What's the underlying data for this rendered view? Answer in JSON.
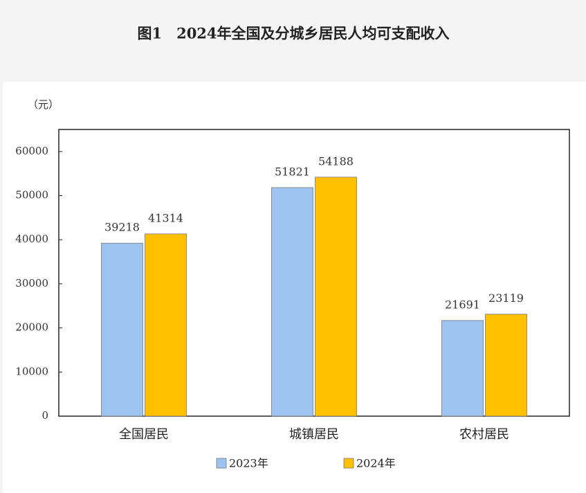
{
  "chart_data": {
    "type": "bar",
    "title": "图1　2024年全国及分城乡居民人均可支配收入",
    "y_label": "（元）",
    "categories": [
      "全国居民",
      "城镇居民",
      "农村居民"
    ],
    "series": [
      {
        "name": "2023年",
        "color": "#9dc3f0",
        "values": [
          39218,
          51821,
          21691
        ]
      },
      {
        "name": "2024年",
        "color": "#ffc000",
        "values": [
          41314,
          54188,
          23119
        ]
      }
    ],
    "ylim": [
      0,
      65000
    ],
    "yticks": [
      0,
      10000,
      20000,
      30000,
      40000,
      50000,
      60000
    ],
    "grid": false,
    "legend": "bottom"
  }
}
